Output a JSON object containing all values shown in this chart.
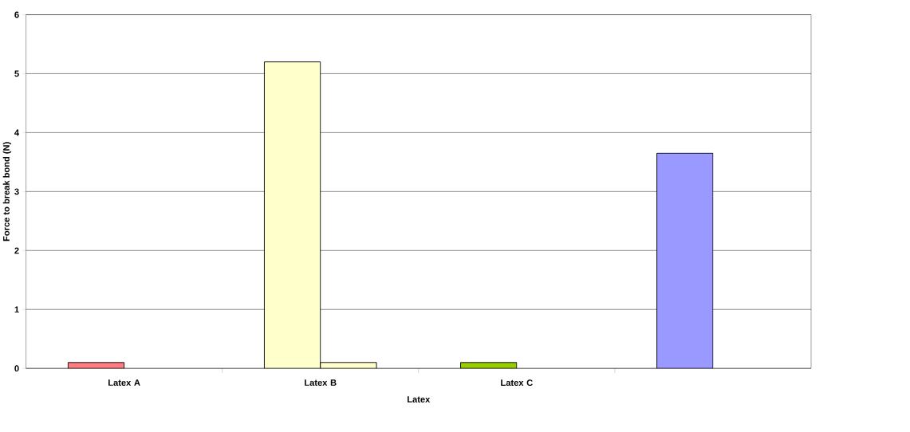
{
  "chart_data": {
    "type": "bar",
    "xlabel": "Latex",
    "ylabel": "Force to break bond (N)",
    "categories": [
      "Latex A",
      "Latex B",
      "Latex C",
      null
    ],
    "series": [
      {
        "colors": [
          "#ff7c80",
          "#ffffcc",
          "#99cc00",
          "#9999ff"
        ],
        "values": [
          0.1,
          5.2,
          0.1,
          3.65
        ]
      },
      {
        "color": "#ffffcc",
        "values": [
          null,
          0.1,
          null,
          null
        ]
      }
    ],
    "ylim": [
      0,
      6
    ],
    "yticks": [
      0,
      1,
      2,
      3,
      4,
      5,
      6
    ],
    "grid": "y"
  }
}
